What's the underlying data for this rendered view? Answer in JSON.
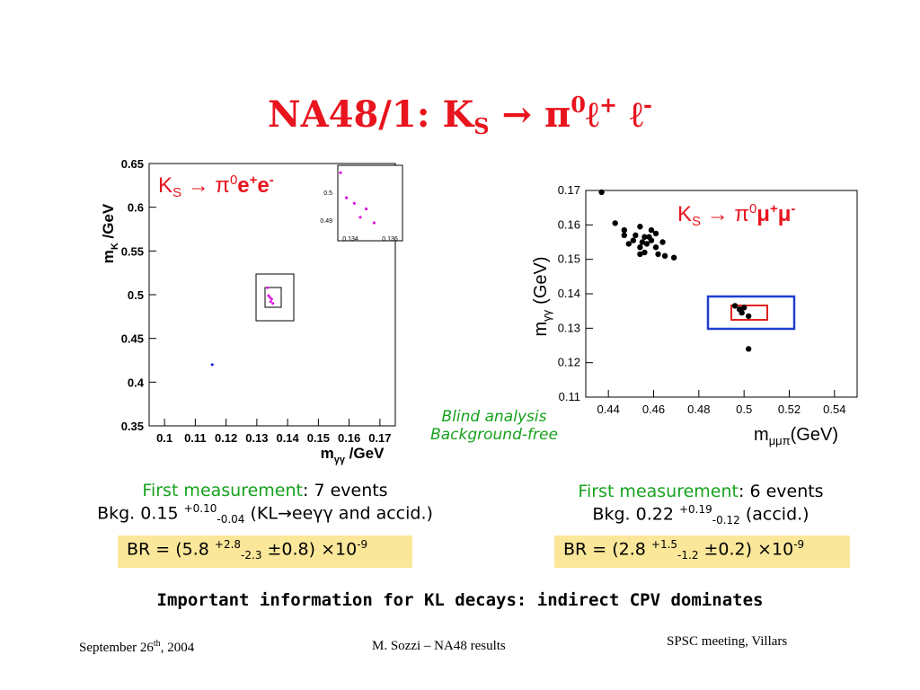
{
  "title": {
    "prefix": "NA48/1: K",
    "sub": "S",
    "arrow": "→",
    "pi": "π",
    "pi_sup": "0",
    "ell_plus": "ℓ",
    "plus": "+",
    "ell_minus": "ℓ",
    "minus": "-"
  },
  "left_plot": {
    "label": "K_S → π0 e+ e-",
    "label_parts": {
      "k": "K",
      "s": "S",
      "arrow": "→",
      "pi": "π",
      "zero": "0",
      "e1": "e",
      "p": "+",
      "e2": "e",
      "m": "-"
    },
    "ylabel": "m_K /GeV",
    "xlabel": "m_γγ /GeV",
    "ylabel_parts": {
      "m": "m",
      "k": "K",
      "rest": " /GeV"
    },
    "xlabel_parts": {
      "m": "m",
      "gg": "γγ",
      "rest": " /GeV"
    },
    "y_ticks": [
      "0.65",
      "0.6",
      "0.55",
      "0.5",
      "0.45",
      "0.4",
      "0.35"
    ],
    "x_ticks": [
      "0.1",
      "0.11",
      "0.12",
      "0.13",
      "0.14",
      "0.15",
      "0.16",
      "0.17"
    ],
    "inset_y_ticks": [
      "0.5",
      "0.49"
    ],
    "inset_x_ticks": [
      "0.134",
      "0.136"
    ]
  },
  "right_plot": {
    "label_parts": {
      "k": "K",
      "s": "S",
      "arrow": "→",
      "pi": "π",
      "zero": "0",
      "mu1": "μ",
      "p": "+",
      "mu2": "μ",
      "m": "-"
    },
    "ylabel_parts": {
      "m": "m",
      "gg": "γγ",
      "rest": "(GeV)"
    },
    "xlabel_parts": {
      "m": "m",
      "sub": "μμπ",
      "rest": "(GeV)"
    },
    "y_ticks": [
      "0.17",
      "0.16",
      "0.15",
      "0.14",
      "0.13",
      "0.12",
      "0.11"
    ],
    "x_ticks": [
      "0.44",
      "0.46",
      "0.48",
      "0.5",
      "0.52",
      "0.54"
    ]
  },
  "chart_data": [
    {
      "type": "scatter",
      "xlabel": "m_γγ /GeV",
      "ylabel": "m_K /GeV",
      "xlim": [
        0.095,
        0.175
      ],
      "ylim": [
        0.35,
        0.65
      ],
      "series": [
        {
          "color": "#e010e0",
          "points": [
            [
              0.1335,
              0.508
            ],
            [
              0.1338,
              0.499
            ],
            [
              0.1342,
              0.497
            ],
            [
              0.1345,
              0.492
            ],
            [
              0.1348,
              0.495
            ],
            [
              0.1352,
              0.49
            ]
          ]
        },
        {
          "color": "#1010e0",
          "points": [
            [
              0.1155,
              0.42
            ]
          ]
        }
      ]
    },
    {
      "type": "scatter",
      "xlabel": "m_μμπ (GeV)",
      "ylabel": "m_γγ (GeV)",
      "xlim": [
        0.43,
        0.55
      ],
      "ylim": [
        0.11,
        0.17
      ],
      "series": [
        {
          "color": "#000000",
          "points": [
            [
              0.437,
              0.1695
            ],
            [
              0.443,
              0.1605
            ],
            [
              0.447,
              0.1585
            ],
            [
              0.447,
              0.157
            ],
            [
              0.449,
              0.1545
            ],
            [
              0.451,
              0.1555
            ],
            [
              0.452,
              0.157
            ],
            [
              0.454,
              0.1535
            ],
            [
              0.454,
              0.1515
            ],
            [
              0.455,
              0.155
            ],
            [
              0.454,
              0.1595
            ],
            [
              0.456,
              0.1565
            ],
            [
              0.456,
              0.152
            ],
            [
              0.457,
              0.1545
            ],
            [
              0.458,
              0.1565
            ],
            [
              0.459,
              0.1585
            ],
            [
              0.459,
              0.1555
            ],
            [
              0.461,
              0.1575
            ],
            [
              0.461,
              0.1535
            ],
            [
              0.462,
              0.1515
            ],
            [
              0.464,
              0.155
            ],
            [
              0.465,
              0.151
            ],
            [
              0.469,
              0.1505
            ],
            [
              0.496,
              0.1365
            ],
            [
              0.498,
              0.1355
            ],
            [
              0.499,
              0.1345
            ],
            [
              0.5,
              0.136
            ],
            [
              0.502,
              0.1335
            ],
            [
              0.502,
              0.124
            ]
          ]
        }
      ]
    }
  ],
  "center_note": {
    "line1": "Blind analysis",
    "line2": "Background-free"
  },
  "left_text": {
    "first_measurement": "First measurement",
    "events": ": 7 events",
    "bkg_prefix": "Bkg. 0.15 ",
    "bkg_sup": "+0.10",
    "bkg_sub": "-0.04",
    "bkg_mid": " (KL",
    "bkg_arrow": "→",
    "bkg_ee": "ee",
    "bkg_gg": "γγ",
    "bkg_end": " and accid.)",
    "br_prefix": "BR = (5.8 ",
    "br_sup": "+2.8",
    "br_sub": "-2.3",
    "br_mid": " ±0.8) ×10",
    "br_exp": "-9"
  },
  "right_text": {
    "first_measurement": "First measurement",
    "events": ": 6 events",
    "bkg_prefix": "Bkg. 0.22 ",
    "bkg_sup": "+0.19",
    "bkg_sub": "-0.12",
    "bkg_end": " (accid.)",
    "br_prefix": "BR = (2.8 ",
    "br_sup": "+1.5",
    "br_sub": "-1.2",
    "br_mid": " ±0.2) ×10",
    "br_exp": "-9"
  },
  "important": "Important information for KL decays: indirect CPV dominates",
  "footer": {
    "date_prefix": "September 26",
    "date_sup": "th",
    "date_suffix": ", 2004",
    "author": "M. Sozzi – NA48 results",
    "meeting": "SPSC meeting, Villars"
  },
  "colors": {
    "title": "#e8141e",
    "green": "#16a21d",
    "br_box": "#fbe79a",
    "blue_box": "#1f3fcf",
    "red_box": "#e0231e",
    "magenta": "#e010e0"
  }
}
